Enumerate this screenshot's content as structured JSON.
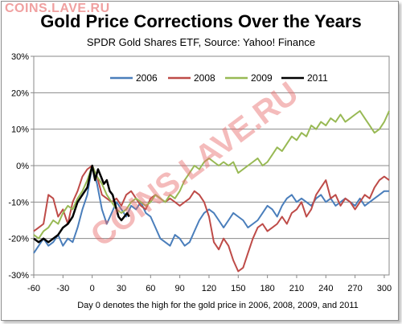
{
  "watermark_text": "COINS.LAVE.RU",
  "watermark_diagonal": "COINS.LAVE.RU",
  "chart_data": {
    "type": "line",
    "title": "Gold Price Corrections Over the Years",
    "subtitle": "SPDR Gold Shares ETF, Source: Yahoo! Finance",
    "xlabel": "",
    "ylabel": "",
    "footnote": "Day 0 denotes the high for the gold price in 2006, 2008, 2009, and 2011",
    "xlim": [
      -60,
      305
    ],
    "ylim": [
      -30,
      30
    ],
    "x_ticks": [
      -60,
      -30,
      0,
      30,
      60,
      90,
      120,
      150,
      180,
      210,
      240,
      270,
      300
    ],
    "y_ticks": [
      30,
      20,
      10,
      0,
      -10,
      -20,
      -30
    ],
    "y_tick_labels": [
      "30%",
      "20%",
      "10%",
      "0%",
      "-10%",
      "-20%",
      "-30%"
    ],
    "grid": "horizontal",
    "legend_position": "top-center",
    "series": [
      {
        "name": "2006",
        "color": "#4a7ebb",
        "points": [
          [
            -60,
            -24
          ],
          [
            -55,
            -22
          ],
          [
            -50,
            -20
          ],
          [
            -45,
            -22
          ],
          [
            -40,
            -21
          ],
          [
            -35,
            -19
          ],
          [
            -30,
            -22
          ],
          [
            -25,
            -20
          ],
          [
            -20,
            -21
          ],
          [
            -15,
            -17
          ],
          [
            -10,
            -12
          ],
          [
            -5,
            -8
          ],
          [
            0,
            0
          ],
          [
            5,
            -5
          ],
          [
            10,
            -12
          ],
          [
            15,
            -16
          ],
          [
            20,
            -13
          ],
          [
            25,
            -10
          ],
          [
            30,
            -12
          ],
          [
            35,
            -14
          ],
          [
            40,
            -11
          ],
          [
            45,
            -12
          ],
          [
            50,
            -10
          ],
          [
            55,
            -13
          ],
          [
            60,
            -14
          ],
          [
            65,
            -17
          ],
          [
            70,
            -20
          ],
          [
            75,
            -21
          ],
          [
            80,
            -22
          ],
          [
            85,
            -19
          ],
          [
            90,
            -20
          ],
          [
            95,
            -22
          ],
          [
            100,
            -21
          ],
          [
            105,
            -18
          ],
          [
            110,
            -15
          ],
          [
            115,
            -13
          ],
          [
            120,
            -12
          ],
          [
            125,
            -13
          ],
          [
            130,
            -15
          ],
          [
            135,
            -17
          ],
          [
            140,
            -15
          ],
          [
            145,
            -13
          ],
          [
            150,
            -14
          ],
          [
            155,
            -15
          ],
          [
            160,
            -17
          ],
          [
            165,
            -16
          ],
          [
            170,
            -15
          ],
          [
            175,
            -13
          ],
          [
            180,
            -11
          ],
          [
            185,
            -12
          ],
          [
            190,
            -14
          ],
          [
            195,
            -11
          ],
          [
            200,
            -9
          ],
          [
            205,
            -8
          ],
          [
            210,
            -10
          ],
          [
            215,
            -9
          ],
          [
            220,
            -10
          ],
          [
            225,
            -11
          ],
          [
            230,
            -9
          ],
          [
            235,
            -8
          ],
          [
            240,
            -10
          ],
          [
            245,
            -9
          ],
          [
            250,
            -11
          ],
          [
            255,
            -10
          ],
          [
            260,
            -9
          ],
          [
            265,
            -10
          ],
          [
            270,
            -11
          ],
          [
            275,
            -9
          ],
          [
            280,
            -11
          ],
          [
            285,
            -10
          ],
          [
            290,
            -9
          ],
          [
            295,
            -8
          ],
          [
            300,
            -7
          ],
          [
            305,
            -7
          ]
        ]
      },
      {
        "name": "2008",
        "color": "#be4b48",
        "points": [
          [
            -60,
            -18
          ],
          [
            -55,
            -17
          ],
          [
            -50,
            -16
          ],
          [
            -45,
            -8
          ],
          [
            -40,
            -9
          ],
          [
            -35,
            -14
          ],
          [
            -30,
            -12
          ],
          [
            -25,
            -16
          ],
          [
            -20,
            -10
          ],
          [
            -15,
            -7
          ],
          [
            -10,
            -3
          ],
          [
            -5,
            -1
          ],
          [
            0,
            0
          ],
          [
            5,
            -3
          ],
          [
            10,
            -8
          ],
          [
            15,
            -9
          ],
          [
            20,
            -10
          ],
          [
            25,
            -9
          ],
          [
            30,
            -11
          ],
          [
            35,
            -8
          ],
          [
            40,
            -7
          ],
          [
            45,
            -9
          ],
          [
            50,
            -11
          ],
          [
            55,
            -12
          ],
          [
            60,
            -9
          ],
          [
            65,
            -8
          ],
          [
            70,
            -9
          ],
          [
            75,
            -10
          ],
          [
            80,
            -9
          ],
          [
            85,
            -10
          ],
          [
            90,
            -11
          ],
          [
            95,
            -10
          ],
          [
            100,
            -9
          ],
          [
            105,
            -7
          ],
          [
            110,
            -8
          ],
          [
            115,
            -10
          ],
          [
            120,
            -14
          ],
          [
            125,
            -21
          ],
          [
            130,
            -23
          ],
          [
            135,
            -20
          ],
          [
            140,
            -22
          ],
          [
            145,
            -26
          ],
          [
            150,
            -29
          ],
          [
            155,
            -28
          ],
          [
            160,
            -24
          ],
          [
            165,
            -20
          ],
          [
            170,
            -17
          ],
          [
            175,
            -16
          ],
          [
            180,
            -18
          ],
          [
            185,
            -17
          ],
          [
            190,
            -16
          ],
          [
            195,
            -14
          ],
          [
            200,
            -16
          ],
          [
            205,
            -13
          ],
          [
            210,
            -12
          ],
          [
            215,
            -10
          ],
          [
            220,
            -14
          ],
          [
            225,
            -12
          ],
          [
            230,
            -8
          ],
          [
            235,
            -6
          ],
          [
            240,
            -4
          ],
          [
            245,
            -9
          ],
          [
            250,
            -8
          ],
          [
            255,
            -11
          ],
          [
            260,
            -9
          ],
          [
            265,
            -10
          ],
          [
            270,
            -12
          ],
          [
            275,
            -10
          ],
          [
            280,
            -8
          ],
          [
            285,
            -9
          ],
          [
            290,
            -6
          ],
          [
            295,
            -4
          ],
          [
            300,
            -3
          ],
          [
            305,
            -4
          ]
        ]
      },
      {
        "name": "2009",
        "color": "#98b954",
        "points": [
          [
            -60,
            -19
          ],
          [
            -55,
            -20
          ],
          [
            -50,
            -18
          ],
          [
            -45,
            -17
          ],
          [
            -40,
            -15
          ],
          [
            -35,
            -16
          ],
          [
            -30,
            -13
          ],
          [
            -25,
            -11
          ],
          [
            -20,
            -12
          ],
          [
            -15,
            -9
          ],
          [
            -10,
            -7
          ],
          [
            -5,
            -4
          ],
          [
            0,
            0
          ],
          [
            5,
            -3
          ],
          [
            10,
            -5
          ],
          [
            15,
            -8
          ],
          [
            20,
            -10
          ],
          [
            25,
            -12
          ],
          [
            30,
            -13
          ],
          [
            35,
            -12
          ],
          [
            40,
            -10
          ],
          [
            45,
            -9
          ],
          [
            50,
            -10
          ],
          [
            55,
            -11
          ],
          [
            60,
            -10
          ],
          [
            65,
            -8
          ],
          [
            70,
            -9
          ],
          [
            75,
            -10
          ],
          [
            80,
            -8
          ],
          [
            85,
            -9
          ],
          [
            90,
            -7
          ],
          [
            95,
            -4
          ],
          [
            100,
            -2
          ],
          [
            105,
            0
          ],
          [
            110,
            -1
          ],
          [
            115,
            1
          ],
          [
            120,
            2
          ],
          [
            125,
            1
          ],
          [
            130,
            0
          ],
          [
            135,
            1
          ],
          [
            140,
            0
          ],
          [
            145,
            1
          ],
          [
            150,
            -2
          ],
          [
            155,
            -1
          ],
          [
            160,
            0
          ],
          [
            165,
            1
          ],
          [
            170,
            2
          ],
          [
            175,
            0
          ],
          [
            180,
            1
          ],
          [
            185,
            3
          ],
          [
            190,
            5
          ],
          [
            195,
            4
          ],
          [
            200,
            6
          ],
          [
            205,
            8
          ],
          [
            210,
            7
          ],
          [
            215,
            9
          ],
          [
            220,
            8
          ],
          [
            225,
            11
          ],
          [
            230,
            10
          ],
          [
            235,
            12
          ],
          [
            240,
            11
          ],
          [
            245,
            13
          ],
          [
            250,
            12
          ],
          [
            255,
            14
          ],
          [
            260,
            12
          ],
          [
            265,
            13
          ],
          [
            270,
            14
          ],
          [
            275,
            15
          ],
          [
            280,
            13
          ],
          [
            285,
            11
          ],
          [
            290,
            9
          ],
          [
            295,
            10
          ],
          [
            300,
            12
          ],
          [
            305,
            15
          ]
        ]
      },
      {
        "name": "2011",
        "color": "#000000",
        "points": [
          [
            -60,
            -20
          ],
          [
            -55,
            -21
          ],
          [
            -50,
            -20
          ],
          [
            -45,
            -21
          ],
          [
            -40,
            -20
          ],
          [
            -35,
            -19
          ],
          [
            -30,
            -17
          ],
          [
            -25,
            -16
          ],
          [
            -20,
            -14
          ],
          [
            -15,
            -10
          ],
          [
            -10,
            -8
          ],
          [
            -5,
            -6
          ],
          [
            0,
            0
          ],
          [
            3,
            -4
          ],
          [
            6,
            -1
          ],
          [
            9,
            -3
          ],
          [
            12,
            -5
          ],
          [
            15,
            -4
          ],
          [
            18,
            -7
          ],
          [
            21,
            -8
          ],
          [
            24,
            -11
          ],
          [
            27,
            -14
          ],
          [
            30,
            -15
          ],
          [
            33,
            -14
          ],
          [
            36,
            -13
          ],
          [
            38,
            -14
          ]
        ]
      }
    ]
  }
}
